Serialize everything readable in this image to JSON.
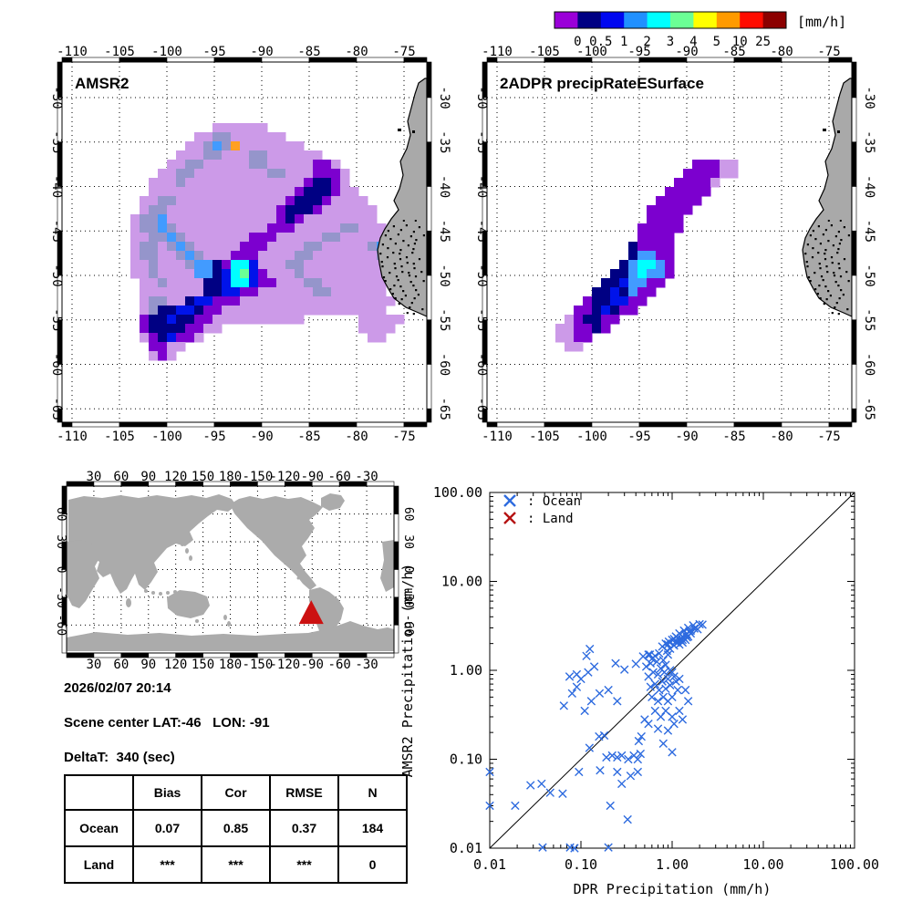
{
  "colorbar": {
    "unit": "[mm/h]",
    "tick_labels": [
      "0",
      "0.5",
      "1",
      "2",
      "3",
      "4",
      "5",
      "10",
      "25"
    ],
    "colors": [
      "#9A00D8",
      "#000083",
      "#0007F0",
      "#2090FF",
      "#00FFFF",
      "#6BFF95",
      "#FFFF00",
      "#FF9A00",
      "#FF0C00",
      "#8C0000"
    ]
  },
  "maps": {
    "lon_values": [
      -110,
      -105,
      -100,
      -95,
      -90,
      -85,
      -80,
      -75
    ],
    "lat_values": [
      -30,
      -35,
      -40,
      -45,
      -50,
      -55,
      -60,
      -65
    ],
    "palette": {
      "L": "#CC9AE8",
      "G": "#9595CB",
      "P": "#7C00CF",
      "N": "#000083",
      "B": "#0013EA",
      "D": "#429BFF",
      "C": "#00FFFF",
      "E": "#6BFF95",
      "Y": "#FFFF00",
      "O": "#FFA022"
    },
    "land_color": "#A9A9A9",
    "left": {
      "title": "AMSR2",
      "raster": [
        "..........LLLLLL................",
        "........LLGGLLLLLL..............",
        ".......LLGDGOLLLLLLL............",
        "......LLLGGLLLGGLLLLLL..........",
        ".....LLGGLLLLLGGLLLLLPPL........",
        "....LLGGLLLLLLLLGGLLLPPPL.......",
        "...LLLGLLLLLLLLLLLLLPNNPL.......",
        "...LLLLLLLLLLLLLLLLPNNNPLL......",
        "..LLGGLLLLLLLLLLLLPNNNPLLLL.....",
        "..LGGLLLLLLLLLLLLPNNNPLLLLLL....",
        ".LGGDLLLLLLLLLLLLPNPLLLLLLLL....",
        ".LGGDGLLLLLLLLLLPPPLLLLLGGLLL...",
        ".LLGGDGLLLLLLLPPPLLLLLGGLLLLL...",
        ".LGGLGDGLLLLLPPPLLLLGGLLLLLGDD..",
        ".LGGLLGDGLLLPPPLLLLGGLLLLLLLGD..",
        ".LLGLLLGDDNPCCBLLLGGLLLLLLLLL...",
        ".LLGLLLLDDNBCEBPLLLGLLLLLLLLL...",
        "..LLGLLLLNNBCCBPPLLLGGLLLLLLL...",
        "..LLLLLLLNNBBPPLLLLLLGGLLLLLL...",
        "..LGGLLNBBPPPLLLLLLLLLLLLLLLLL..",
        "..LGNNBBNPPLLLLLLLLLLLLLLLLLL...",
        "..PNNBNNPPLLLLLLLLLL......LLLLL.",
        "..PNNNNPPLL...............LLLL..",
        "..LPNBPPL..................LL...",
        "...PPLL.........................",
        "...LPL.........................."
      ]
    },
    "right": {
      "title": "2ADPR precipRateESurface",
      "raster": [
        "................................",
        "................................",
        "................................",
        "................................",
        "................PPPLL...........",
        "...............PPPPLL...........",
        "..............PPPPL.............",
        ".............PPPPP..............",
        "............PPPPP...............",
        "...........PPPPP................",
        "...........PPPP.................",
        "..........PPPPP.................",
        "..........PPPP..................",
        ".........NPPPP..................",
        ".........NDDPP..................",
        "........NDCCDP..................",
        ".......NNDCDDP..................",
        "......NNBDDPP...................",
        ".....NNBNDPP....................",
        "....PNNBBPP.....................",
        "...PPNBNPP......................",
        "..LPNNPP........................",
        ".LLPPNP.........................",
        ".LLPP...........................",
        "..LL............................",
        "................................"
      ]
    }
  },
  "world_map": {
    "lon_labels": [
      "30",
      "60",
      "90",
      "120",
      "150",
      "180",
      "-150",
      "-120",
      "-90",
      "-60",
      "-30"
    ],
    "lat_labels": [
      "60",
      "30",
      "0",
      "-30",
      "-60"
    ],
    "marker_color": "#CC1111",
    "land_color": "#ABABAB"
  },
  "scene_info": {
    "date_time": "2026/02/07 20:14",
    "scene_center": "Scene center LAT:-46   LON: -91",
    "delta_t": "DeltaT:  340 (sec)",
    "lat": -46,
    "lon": -91
  },
  "stats_table": {
    "headers": [
      "",
      "Bias",
      "Cor",
      "RMSE",
      "N"
    ],
    "rows": [
      [
        "Ocean",
        "0.07",
        "0.85",
        "0.37",
        "184"
      ],
      [
        "Land",
        "***",
        "***",
        "***",
        "0"
      ]
    ]
  },
  "chart_data": {
    "type": "scatter",
    "xlabel": "DPR Precipitation (mm/h)",
    "ylabel": "AMSR2 Precipitation (mm/h)",
    "xscale": "log",
    "yscale": "log",
    "xlim": [
      0.01,
      100
    ],
    "ylim": [
      0.01,
      100
    ],
    "tick_values": [
      0.01,
      0.1,
      1,
      10,
      100
    ],
    "tick_labels": [
      "0.01",
      "0.10",
      "1.00",
      "10.00",
      "100.00"
    ],
    "reference_line": "1:1 diagonal",
    "legend": [
      {
        "label": ": Ocean",
        "color": "#2E6BDF",
        "symbol": "x"
      },
      {
        "label": ": Land",
        "color": "#B51212",
        "symbol": "x"
      }
    ],
    "series": [
      {
        "name": "Ocean",
        "color": "#2E6BDF",
        "points": [
          [
            0.78,
            1.85
          ],
          [
            0.85,
            2.0
          ],
          [
            0.92,
            2.1
          ],
          [
            1.0,
            2.2
          ],
          [
            1.1,
            2.4
          ],
          [
            1.2,
            2.6
          ],
          [
            1.35,
            2.8
          ],
          [
            1.5,
            3.0
          ],
          [
            1.7,
            3.2
          ],
          [
            2.0,
            3.3
          ],
          [
            2.15,
            3.26
          ],
          [
            1.9,
            2.9
          ],
          [
            1.6,
            2.6
          ],
          [
            1.45,
            2.35
          ],
          [
            1.3,
            2.2
          ],
          [
            1.15,
            2.05
          ],
          [
            1.05,
            1.9
          ],
          [
            0.95,
            1.75
          ],
          [
            0.88,
            1.66
          ],
          [
            1.25,
            2.3
          ],
          [
            1.4,
            2.5
          ],
          [
            1.05,
            2.25
          ],
          [
            0.9,
            1.95
          ],
          [
            1.55,
            2.75
          ],
          [
            1.75,
            2.95
          ],
          [
            1.1,
            2.1
          ],
          [
            1.2,
            2.2
          ],
          [
            1.15,
            2.3
          ],
          [
            1.3,
            2.4
          ],
          [
            1.25,
            2.15
          ],
          [
            1.35,
            2.3
          ],
          [
            1.45,
            2.55
          ],
          [
            1.2,
            1.95
          ],
          [
            1.3,
            2.05
          ],
          [
            1.5,
            2.4
          ],
          [
            1.6,
            2.8
          ],
          [
            1.4,
            2.2
          ],
          [
            0.48,
            1.43
          ],
          [
            0.55,
            1.5
          ],
          [
            0.6,
            1.35
          ],
          [
            0.68,
            1.25
          ],
          [
            0.52,
            1.1
          ],
          [
            0.58,
            1.2
          ],
          [
            0.65,
            1.45
          ],
          [
            0.72,
            1.55
          ],
          [
            0.8,
            1.3
          ],
          [
            0.85,
            1.15
          ],
          [
            0.9,
            1.5
          ],
          [
            0.75,
            1.05
          ],
          [
            0.62,
            0.95
          ],
          [
            0.55,
            0.85
          ],
          [
            0.7,
            0.9
          ],
          [
            0.82,
            0.95
          ],
          [
            0.95,
            1.0
          ],
          [
            1.0,
            0.95
          ],
          [
            1.05,
            0.85
          ],
          [
            0.9,
            0.8
          ],
          [
            0.78,
            0.75
          ],
          [
            0.65,
            0.7
          ],
          [
            0.58,
            0.65
          ],
          [
            0.72,
            0.6
          ],
          [
            0.85,
            0.62
          ],
          [
            0.95,
            0.68
          ],
          [
            1.1,
            0.75
          ],
          [
            1.2,
            0.8
          ],
          [
            0.6,
            0.5
          ],
          [
            0.7,
            0.45
          ],
          [
            0.8,
            0.5
          ],
          [
            0.9,
            0.45
          ],
          [
            1.0,
            0.5
          ],
          [
            1.15,
            0.6
          ],
          [
            0.65,
            0.35
          ],
          [
            0.75,
            0.3
          ],
          [
            0.85,
            0.35
          ],
          [
            1.0,
            0.3
          ],
          [
            1.2,
            0.35
          ],
          [
            0.55,
            0.25
          ],
          [
            0.7,
            0.22
          ],
          [
            0.9,
            0.21
          ],
          [
            1.05,
            0.25
          ],
          [
            1.3,
            0.28
          ],
          [
            0.8,
            0.15
          ],
          [
            1.0,
            0.12
          ],
          [
            1.5,
            0.45
          ],
          [
            1.4,
            0.6
          ],
          [
            0.065,
            0.4
          ],
          [
            0.08,
            0.55
          ],
          [
            0.09,
            0.65
          ],
          [
            0.1,
            0.8
          ],
          [
            0.115,
            1.45
          ],
          [
            0.125,
            1.74
          ],
          [
            0.12,
            0.95
          ],
          [
            0.14,
            1.1
          ],
          [
            0.16,
            0.55
          ],
          [
            0.13,
            0.45
          ],
          [
            0.11,
            0.35
          ],
          [
            0.09,
            0.9
          ],
          [
            0.075,
            0.85
          ],
          [
            0.24,
            1.2
          ],
          [
            0.4,
            1.18
          ],
          [
            0.3,
            1.02
          ],
          [
            0.57,
            1.5
          ],
          [
            0.2,
            0.6
          ],
          [
            0.25,
            0.45
          ],
          [
            0.01,
            0.072
          ],
          [
            0.01,
            0.03
          ],
          [
            0.019,
            0.03
          ],
          [
            0.028,
            0.051
          ],
          [
            0.037,
            0.053
          ],
          [
            0.046,
            0.042
          ],
          [
            0.063,
            0.041
          ],
          [
            0.038,
            0.0102
          ],
          [
            0.076,
            0.0102
          ],
          [
            0.085,
            0.01
          ],
          [
            0.2,
            0.0102
          ],
          [
            0.095,
            0.072
          ],
          [
            0.162,
            0.075
          ],
          [
            0.25,
            0.072
          ],
          [
            0.42,
            0.072
          ],
          [
            0.21,
            0.03
          ],
          [
            0.325,
            0.021
          ],
          [
            0.28,
            0.053
          ],
          [
            0.19,
            0.105
          ],
          [
            0.22,
            0.11
          ],
          [
            0.25,
            0.105
          ],
          [
            0.28,
            0.11
          ],
          [
            0.33,
            0.1
          ],
          [
            0.38,
            0.11
          ],
          [
            0.45,
            0.115
          ],
          [
            0.42,
            0.1
          ],
          [
            0.124,
            0.134
          ],
          [
            0.158,
            0.18
          ],
          [
            0.46,
            0.18
          ],
          [
            0.43,
            0.16
          ],
          [
            0.5,
            0.28
          ],
          [
            0.18,
            0.185
          ],
          [
            0.35,
            0.065
          ]
        ]
      },
      {
        "name": "Land",
        "color": "#B51212",
        "points": []
      }
    ]
  }
}
